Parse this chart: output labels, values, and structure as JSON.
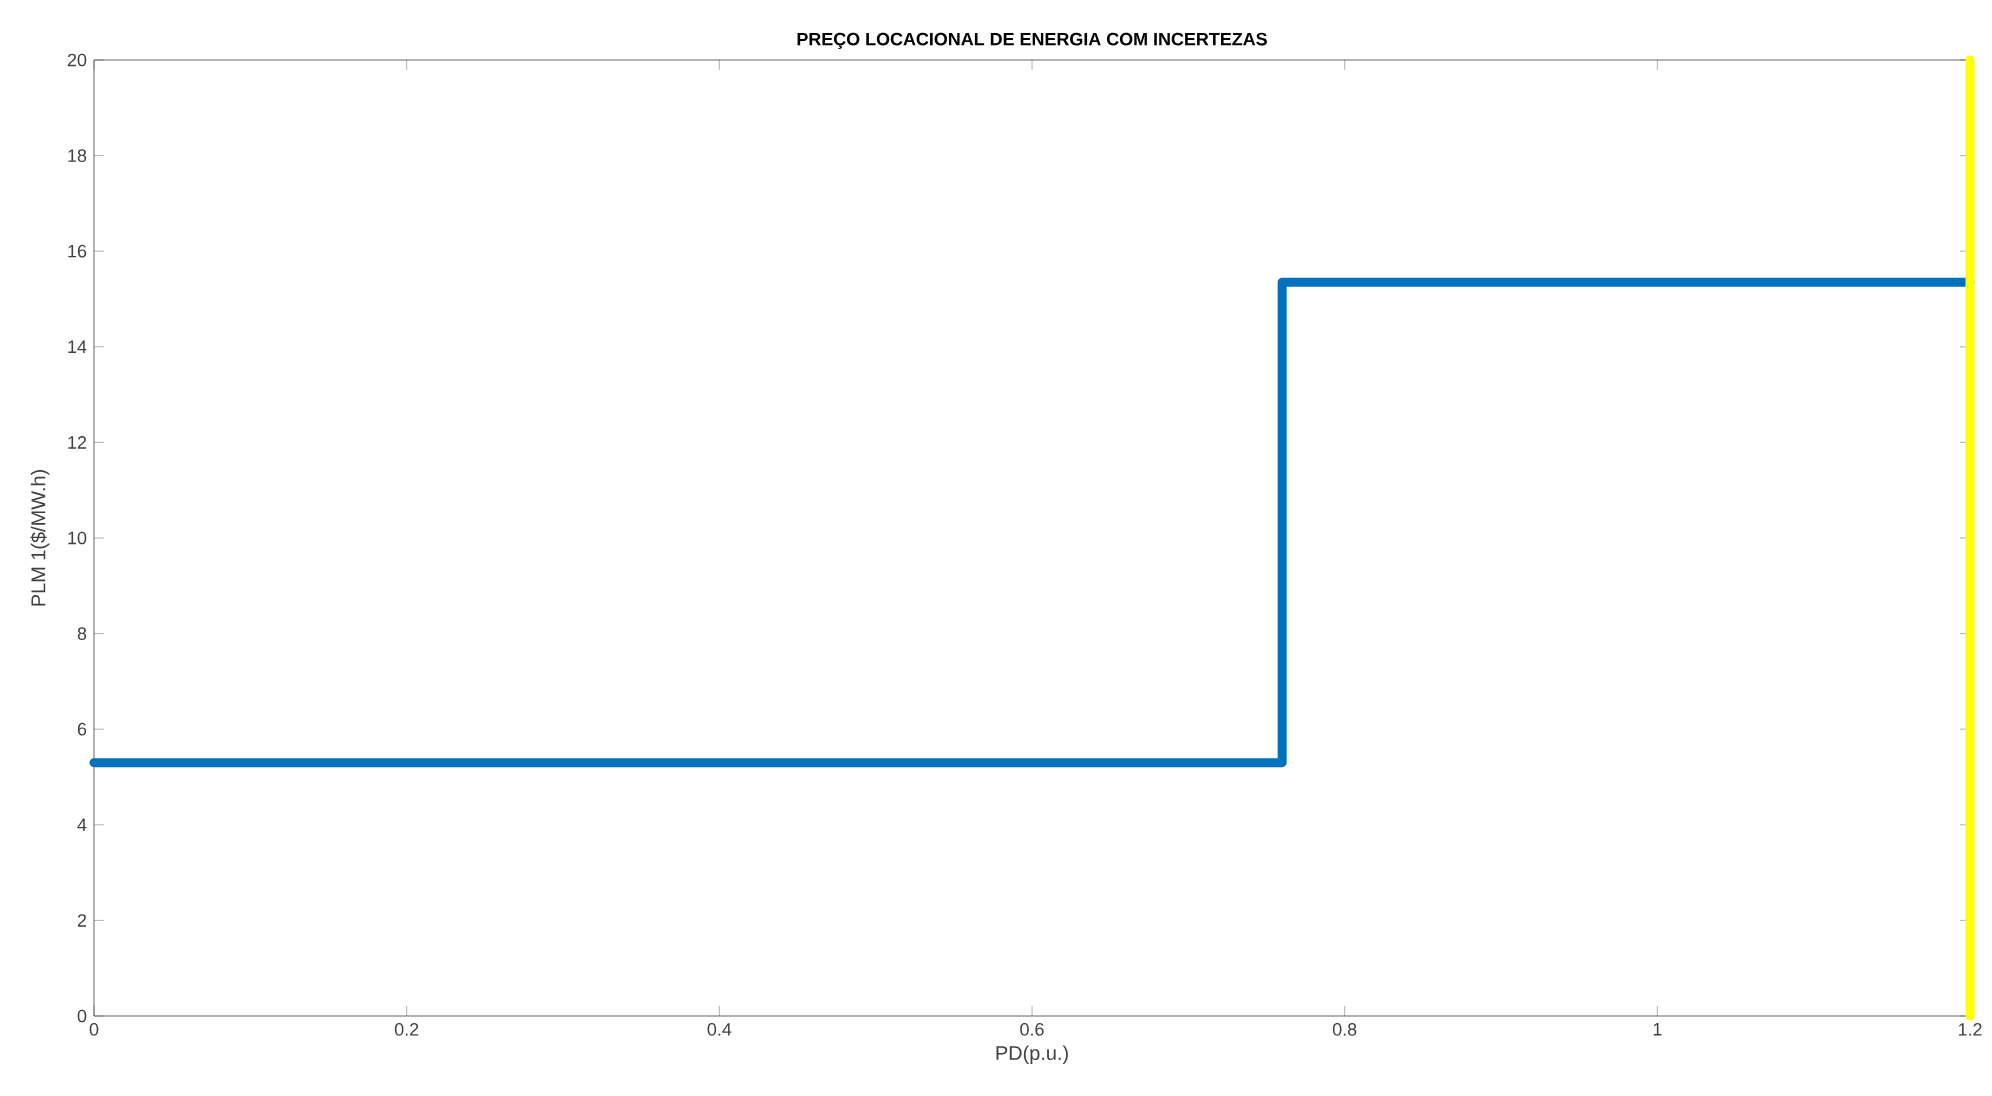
{
  "chart_data": {
    "type": "step",
    "title": "PREÇO LOCACIONAL DE ENERGIA COM INCERTEZAS",
    "xlabel": "PD(p.u.)",
    "ylabel": "PLM 1($/MW.h)",
    "x": [
      0,
      0.76,
      1.2
    ],
    "series": [
      {
        "color": "#0072bd",
        "values": [
          5.3,
          15.35,
          15.35
        ]
      }
    ],
    "xlim": [
      0,
      1.2
    ],
    "ylim": [
      0,
      20
    ],
    "xticks": [
      0,
      0.2,
      0.4,
      0.6,
      0.8,
      1,
      1.2
    ],
    "yticks": [
      0,
      2,
      4,
      6,
      8,
      10,
      12,
      14,
      16,
      18,
      20
    ],
    "ref_lines": [
      {
        "axis": "x",
        "value": 1.2,
        "color": "#ffff00"
      }
    ],
    "grid": false
  }
}
